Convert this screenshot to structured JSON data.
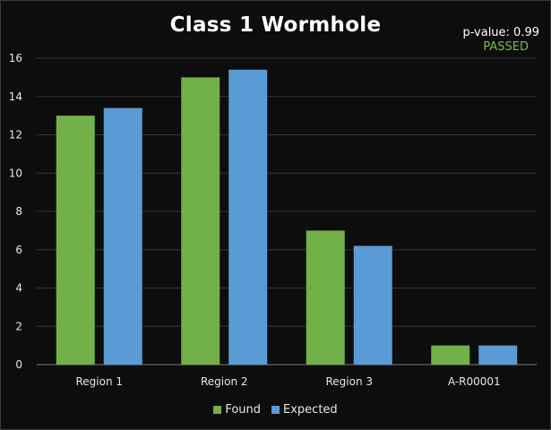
{
  "chart_data": {
    "type": "bar",
    "title": "Class 1 Wormhole",
    "categories": [
      "Region 1",
      "Region 2",
      "Region 3",
      "A-R00001"
    ],
    "series": [
      {
        "name": "Found",
        "values": [
          13,
          15,
          7,
          1
        ],
        "color": "#72b04a"
      },
      {
        "name": "Expected",
        "values": [
          13.4,
          15.4,
          6.2,
          1
        ],
        "color": "#5b9bd5"
      }
    ],
    "ylim": [
      0,
      16
    ],
    "yticks": [
      0,
      2,
      4,
      6,
      8,
      10,
      12,
      14,
      16
    ],
    "grid": true,
    "legend_position": "bottom",
    "annotations": {
      "pvalue": "p-value: 0.99",
      "status": "PASSED",
      "status_color": "#76c043"
    }
  }
}
